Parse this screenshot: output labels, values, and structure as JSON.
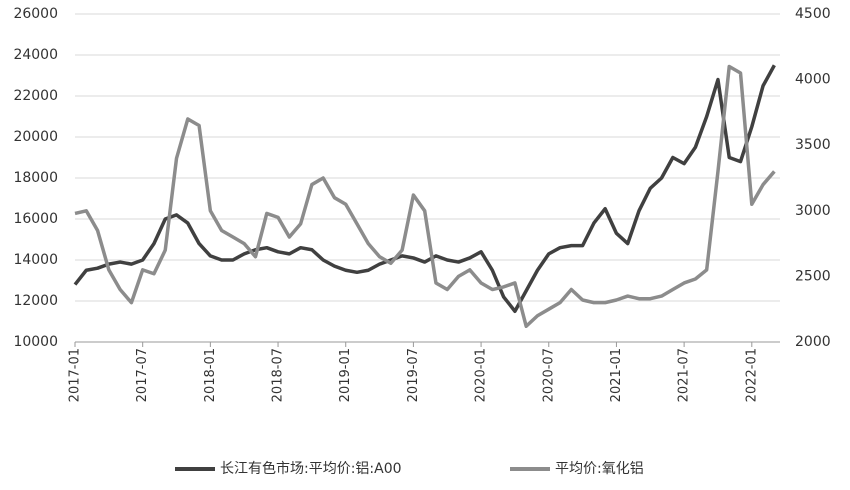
{
  "chart_data": {
    "type": "line",
    "x": [
      "2017-01",
      "2017-02",
      "2017-03",
      "2017-04",
      "2017-05",
      "2017-06",
      "2017-07",
      "2017-08",
      "2017-09",
      "2017-10",
      "2017-11",
      "2017-12",
      "2018-01",
      "2018-02",
      "2018-03",
      "2018-04",
      "2018-05",
      "2018-06",
      "2018-07",
      "2018-08",
      "2018-09",
      "2018-10",
      "2018-11",
      "2018-12",
      "2019-01",
      "2019-02",
      "2019-03",
      "2019-04",
      "2019-05",
      "2019-06",
      "2019-07",
      "2019-08",
      "2019-09",
      "2019-10",
      "2019-11",
      "2019-12",
      "2020-01",
      "2020-02",
      "2020-03",
      "2020-04",
      "2020-05",
      "2020-06",
      "2020-07",
      "2020-08",
      "2020-09",
      "2020-10",
      "2020-11",
      "2020-12",
      "2021-01",
      "2021-02",
      "2021-03",
      "2021-04",
      "2021-05",
      "2021-06",
      "2021-07",
      "2021-08",
      "2021-09",
      "2021-10",
      "2021-11",
      "2021-12",
      "2022-01",
      "2022-02",
      "2022-03"
    ],
    "xticks": [
      "2017-01",
      "2017-07",
      "2018-01",
      "2018-07",
      "2019-01",
      "2019-07",
      "2020-01",
      "2020-07",
      "2021-01",
      "2021-07",
      "2022-01"
    ],
    "series": [
      {
        "name": "长江有色市场:平均价:铝:A00",
        "color": "#404040",
        "axis": "y",
        "values": [
          12800,
          13500,
          13600,
          13800,
          13900,
          13800,
          14000,
          14800,
          16000,
          16200,
          15800,
          14800,
          14200,
          14000,
          14000,
          14300,
          14500,
          14600,
          14400,
          14300,
          14600,
          14500,
          14000,
          13700,
          13500,
          13400,
          13500,
          13800,
          14000,
          14200,
          14100,
          13900,
          14200,
          14000,
          13900,
          14100,
          14400,
          13500,
          12200,
          11500,
          12500,
          13500,
          14300,
          14600,
          14700,
          14700,
          15800,
          16500,
          15300,
          14800,
          16400,
          17500,
          18000,
          19000,
          18700,
          19500,
          21000,
          22800,
          19000,
          18800,
          20500,
          22500,
          23500
        ]
      },
      {
        "name": "平均价:氧化铝",
        "color": "#8c8c8c",
        "axis": "y2",
        "values": [
          2980,
          3000,
          2850,
          2550,
          2400,
          2300,
          2550,
          2520,
          2700,
          3400,
          3700,
          3650,
          3000,
          2850,
          2800,
          2750,
          2650,
          2980,
          2950,
          2800,
          2900,
          3200,
          3250,
          3100,
          3050,
          2900,
          2750,
          2650,
          2600,
          2700,
          3120,
          3000,
          2450,
          2400,
          2500,
          2550,
          2450,
          2400,
          2420,
          2450,
          2120,
          2200,
          2250,
          2300,
          2400,
          2320,
          2300,
          2300,
          2320,
          2350,
          2330,
          2330,
          2350,
          2400,
          2450,
          2480,
          2550,
          3300,
          4100,
          4050,
          3050,
          3200,
          3300
        ]
      }
    ],
    "ylim": [
      10000,
      26000
    ],
    "yticks": [
      10000,
      12000,
      14000,
      16000,
      18000,
      20000,
      22000,
      24000,
      26000
    ],
    "y2lim": [
      2000,
      4500
    ],
    "y2ticks": [
      2000,
      2500,
      3000,
      3500,
      4000,
      4500
    ],
    "grid": true,
    "legend": "bottom"
  }
}
